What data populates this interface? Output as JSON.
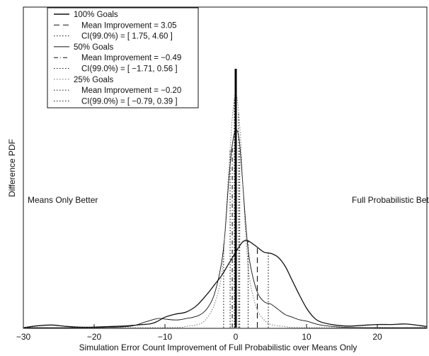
{
  "chart_data": {
    "type": "line",
    "title": "",
    "xlabel": "Simulation Error Count Improvement of Full Probabilistic over Means Only",
    "ylabel": "Difference PDF",
    "xlim": [
      -30,
      27
    ],
    "ylim": [
      0,
      1
    ],
    "xticks": [
      -30,
      -20,
      -10,
      0,
      10,
      20
    ],
    "yticks": [],
    "grid": false,
    "legend_position": "top-left",
    "zero_line": 0,
    "annotations": [
      {
        "text": "Means Only Better",
        "x": -29,
        "y": 0.5
      },
      {
        "text": "Full Probabilistic Better",
        "x": 14.3,
        "y": 0.5
      }
    ],
    "series": [
      {
        "name": "100% Goals",
        "style": "solid",
        "stroke_width": 1.3,
        "x": [
          -30,
          -28,
          -26,
          -24,
          -22,
          -20,
          -18,
          -16,
          -14,
          -12,
          -11,
          -10,
          -8.5,
          -7,
          -5.5,
          -4,
          -3,
          -2,
          -1,
          0,
          0.5,
          1,
          1.5,
          2,
          3,
          4,
          5,
          6,
          7,
          8,
          9,
          10,
          11,
          12,
          14,
          16,
          18,
          20,
          22,
          24,
          26,
          27
        ],
        "values": [
          0,
          0.007,
          0.01,
          0.005,
          0.002,
          0.002,
          0.004,
          0.006,
          0.01,
          0.015,
          0.025,
          0.04,
          0.052,
          0.06,
          0.085,
          0.13,
          0.165,
          0.2,
          0.245,
          0.29,
          0.312,
          0.33,
          0.335,
          0.33,
          0.31,
          0.29,
          0.285,
          0.27,
          0.235,
          0.18,
          0.125,
          0.075,
          0.04,
          0.022,
          0.01,
          0.006,
          0.009,
          0.012,
          0.012,
          0.014,
          0.008,
          0.004
        ]
      },
      {
        "name": "50% Goals",
        "style": "solid",
        "stroke_width": 0.9,
        "x": [
          -30,
          -20,
          -15,
          -13,
          -12,
          -11,
          -10,
          -9,
          -8,
          -7,
          -6,
          -5,
          -4,
          -3,
          -2,
          -1.5,
          -1,
          -0.5,
          0,
          0.5,
          1,
          1.5,
          2,
          3,
          4,
          5,
          6,
          7,
          8,
          9,
          10,
          12,
          15,
          20,
          27
        ],
        "values": [
          0,
          0,
          0.005,
          0.02,
          0.028,
          0.035,
          0.033,
          0.03,
          0.03,
          0.035,
          0.04,
          0.05,
          0.075,
          0.13,
          0.25,
          0.37,
          0.56,
          0.7,
          0.76,
          0.72,
          0.55,
          0.37,
          0.25,
          0.14,
          0.1,
          0.09,
          0.07,
          0.05,
          0.04,
          0.03,
          0.025,
          0.01,
          0.002,
          0,
          0
        ]
      },
      {
        "name": "25% Goals",
        "style": "dotted",
        "stroke_width": 0.9,
        "x": [
          -30,
          -10,
          -7,
          -5,
          -4,
          -3,
          -2,
          -1.5,
          -1,
          -0.5,
          -0.2,
          0,
          0.3,
          0.7,
          1,
          1.5,
          2,
          3,
          4,
          5,
          7,
          10,
          27
        ],
        "values": [
          0,
          0,
          0.005,
          0.015,
          0.04,
          0.09,
          0.2,
          0.38,
          0.6,
          0.8,
          0.88,
          0.9,
          0.86,
          0.72,
          0.55,
          0.32,
          0.18,
          0.07,
          0.03,
          0.012,
          0.004,
          0,
          0
        ]
      }
    ],
    "vertical_markers": [
      {
        "series": "100% Goals",
        "mean": 3.05,
        "ci": [
          1.75,
          4.6
        ],
        "mean_style": "dashed",
        "ci_style": "dotted"
      },
      {
        "series": "50% Goals",
        "mean": -0.49,
        "ci": [
          -1.71,
          0.56
        ],
        "mean_style": "dashdot",
        "ci_style": "dotted"
      },
      {
        "series": "25% Goals",
        "mean": -0.2,
        "ci": [
          -0.79,
          0.39
        ],
        "mean_style": "dotted",
        "ci_style": "dotted"
      }
    ],
    "legend": [
      {
        "text": "100% Goals",
        "indent": false,
        "style": "solid-thick"
      },
      {
        "text": "Mean Improvement = 3.05",
        "indent": true,
        "style": "dashed"
      },
      {
        "text": "CI(99.0%) = [ 1.75, 4.60 ]",
        "indent": true,
        "style": "dotted"
      },
      {
        "text": "50% Goals",
        "indent": false,
        "style": "solid-thin"
      },
      {
        "text": "Mean Improvement = −0.49",
        "indent": true,
        "style": "dashdot"
      },
      {
        "text": "CI(99.0%) = [ −1.71, 0.56 ]",
        "indent": true,
        "style": "dotted"
      },
      {
        "text": "25% Goals",
        "indent": false,
        "style": "dotted-light"
      },
      {
        "text": "Mean Improvement = −0.20",
        "indent": true,
        "style": "dotted"
      },
      {
        "text": "CI(99.0%) = [ −0.79, 0.39 ]",
        "indent": true,
        "style": "dotted"
      }
    ],
    "colors": {
      "line": "#111111",
      "light": "#666666"
    }
  }
}
